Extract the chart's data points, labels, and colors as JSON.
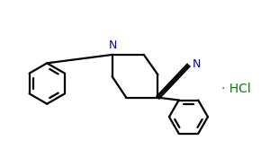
{
  "background_color": "#ffffff",
  "line_color": "#000000",
  "N_label_color": "#0000cc",
  "HCl_color": "#008000",
  "line_width": 1.6,
  "fig_width": 3.0,
  "fig_height": 1.86,
  "dpi": 100,
  "HCl_text": "· HCl",
  "N_label": "N",
  "CN_N_label": "N",
  "xlim": [
    -4.8,
    2.8
  ],
  "ylim": [
    -1.6,
    1.4
  ]
}
